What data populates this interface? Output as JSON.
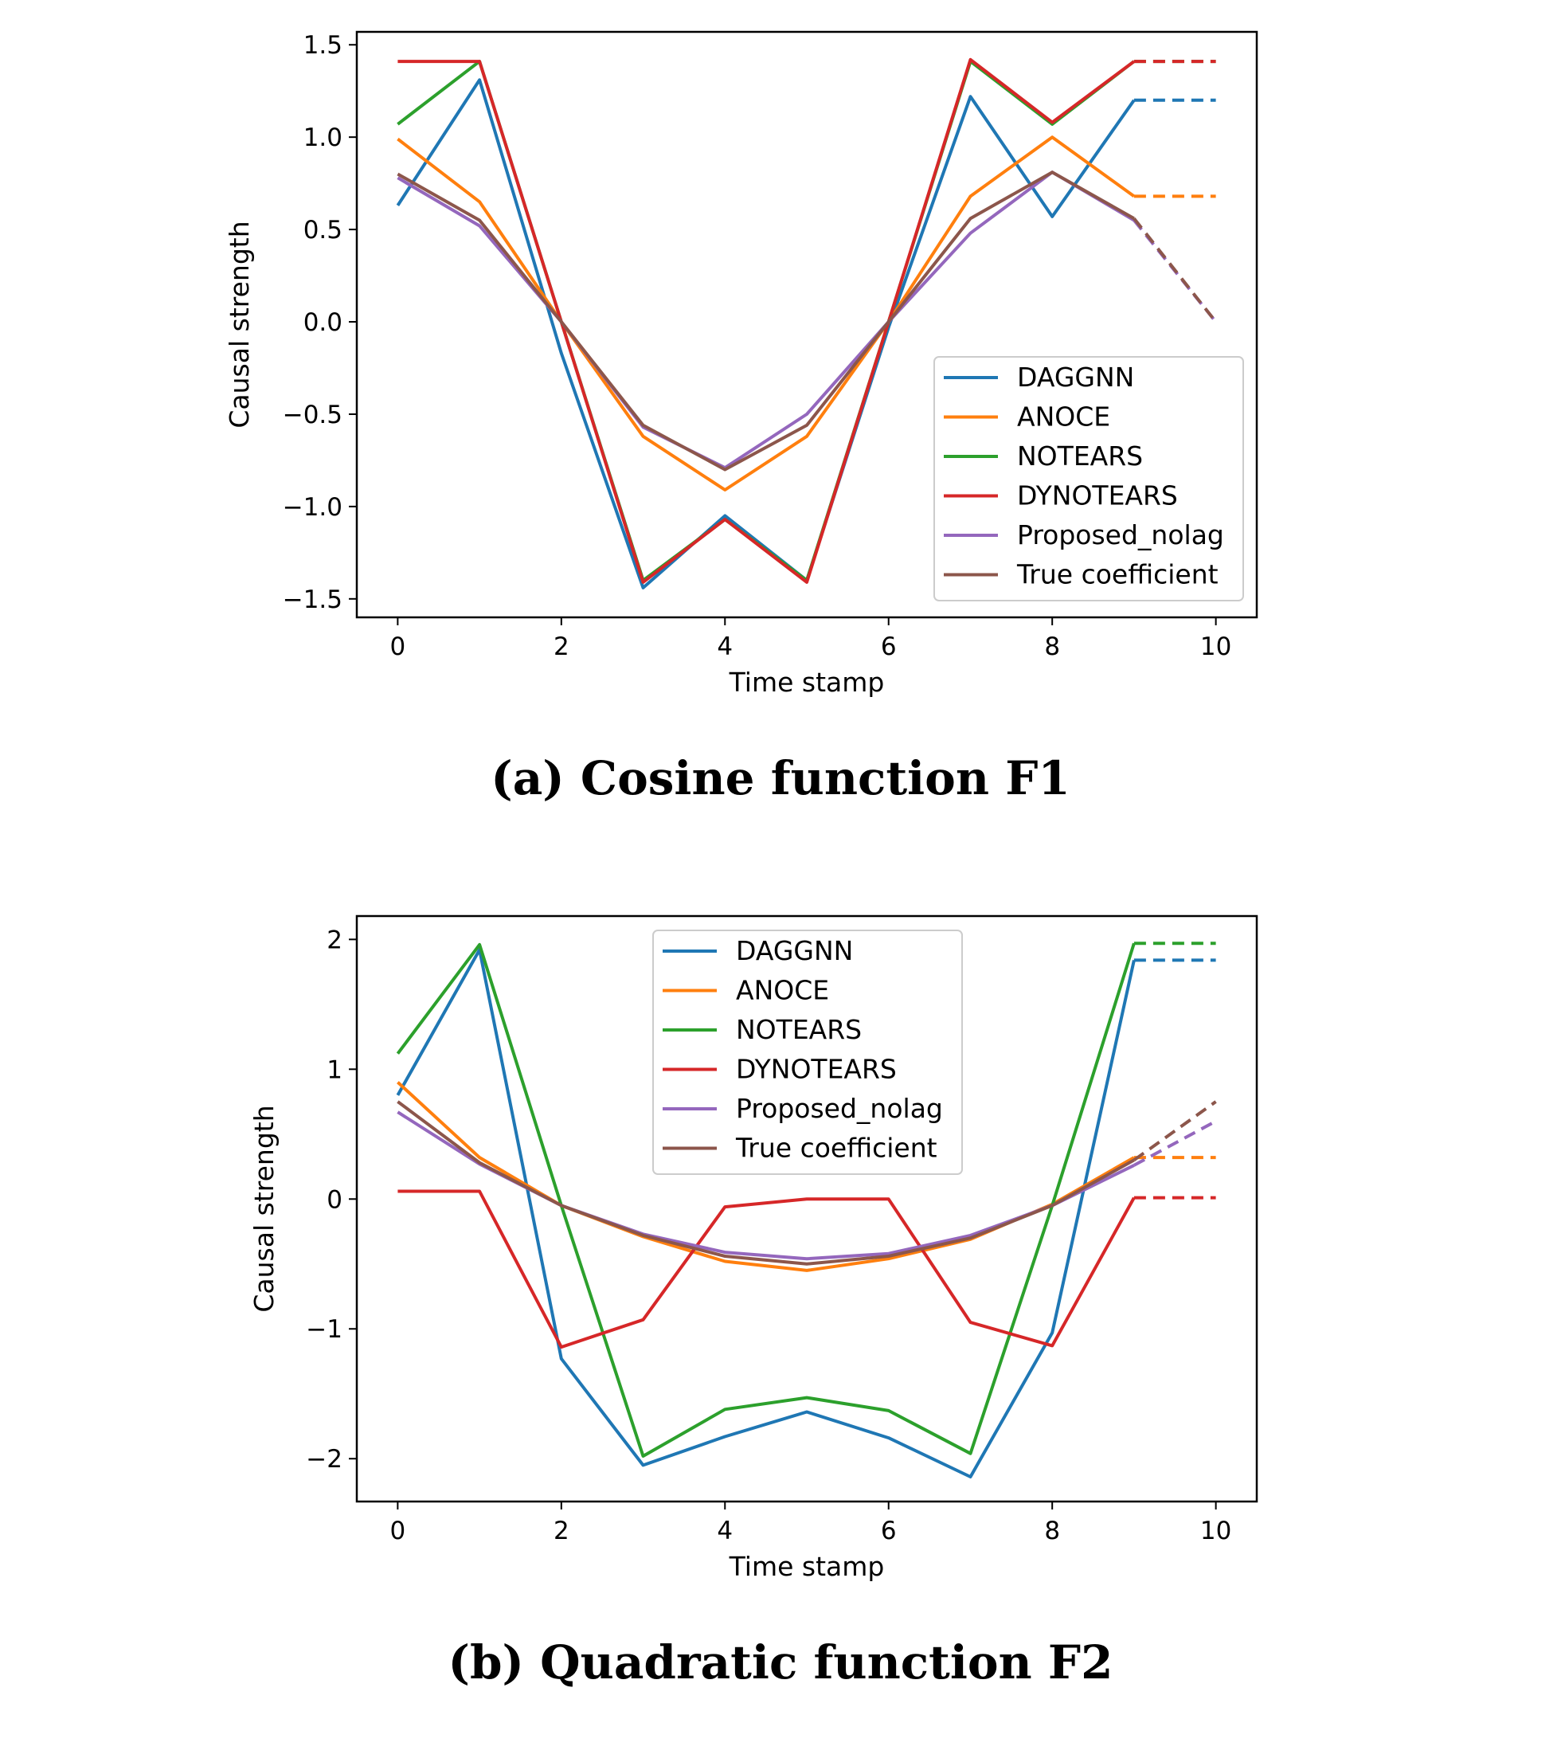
{
  "chart_data": [
    {
      "type": "line",
      "title": "",
      "caption": "(a) Cosine function F1",
      "xlabel": "Time stamp",
      "ylabel": "Causal strength",
      "xlim": [
        -0.5,
        10.5
      ],
      "ylim": [
        -1.6,
        1.57
      ],
      "xticks": [
        0,
        2,
        4,
        6,
        8,
        10
      ],
      "yticks": [
        -1.5,
        -1.0,
        -0.5,
        0.0,
        0.5,
        1.0,
        1.5
      ],
      "ytick_labels": [
        "−1.5",
        "−1.0",
        "−0.5",
        "0.0",
        "0.5",
        "1.0",
        "1.5"
      ],
      "legend_placement": "lower-right",
      "grid": false,
      "x": [
        0,
        1,
        2,
        3,
        4,
        5,
        6,
        7,
        8,
        9
      ],
      "forecast_x": [
        9,
        10
      ],
      "series": [
        {
          "name": "DAGGNN",
          "color": "#1f77b4",
          "values": [
            0.63,
            1.31,
            -0.17,
            -1.44,
            -1.05,
            -1.4,
            -0.03,
            1.22,
            0.57,
            1.2
          ],
          "forecast": [
            1.2,
            1.2
          ]
        },
        {
          "name": "ANOCE",
          "color": "#ff7f0e",
          "values": [
            0.99,
            0.65,
            0.0,
            -0.62,
            -0.91,
            -0.62,
            0.0,
            0.68,
            1.0,
            0.68
          ],
          "forecast": [
            0.68,
            0.68
          ]
        },
        {
          "name": "NOTEARS",
          "color": "#2ca02c",
          "values": [
            1.07,
            1.41,
            0.0,
            -1.4,
            -1.07,
            -1.4,
            0.0,
            1.41,
            1.07,
            1.41
          ],
          "forecast": [
            1.41,
            1.41
          ]
        },
        {
          "name": "DYNOTEARS",
          "color": "#d62728",
          "values": [
            1.41,
            1.41,
            0.0,
            -1.41,
            -1.07,
            -1.41,
            0.0,
            1.42,
            1.08,
            1.41
          ],
          "forecast": [
            1.41,
            1.41
          ]
        },
        {
          "name": "Proposed_nolag",
          "color": "#9467bd",
          "values": [
            0.78,
            0.52,
            0.0,
            -0.57,
            -0.79,
            -0.5,
            0.0,
            0.48,
            0.81,
            0.55
          ],
          "forecast": [
            0.55,
            0.0
          ]
        },
        {
          "name": "True coefficient",
          "color": "#8c564b",
          "values": [
            0.8,
            0.55,
            0.0,
            -0.56,
            -0.8,
            -0.56,
            0.0,
            0.56,
            0.81,
            0.56
          ],
          "forecast": [
            0.56,
            0.0
          ]
        }
      ]
    },
    {
      "type": "line",
      "title": "",
      "caption": "(b) Quadratic function F2",
      "xlabel": "Time stamp",
      "ylabel": "Causal strength",
      "xlim": [
        -0.5,
        10.5
      ],
      "ylim": [
        -2.33,
        2.18
      ],
      "xticks": [
        0,
        2,
        4,
        6,
        8,
        10
      ],
      "yticks": [
        -2,
        -1,
        0,
        1,
        2
      ],
      "ytick_labels": [
        "−2",
        "−1",
        "0",
        "1",
        "2"
      ],
      "legend_placement": "upper-center",
      "grid": false,
      "x": [
        0,
        1,
        2,
        3,
        4,
        5,
        6,
        7,
        8,
        9
      ],
      "forecast_x": [
        9,
        10
      ],
      "series": [
        {
          "name": "DAGGNN",
          "color": "#1f77b4",
          "values": [
            0.8,
            1.92,
            -1.23,
            -2.05,
            -1.83,
            -1.64,
            -1.84,
            -2.14,
            -1.03,
            1.84
          ],
          "forecast": [
            1.84,
            1.84
          ]
        },
        {
          "name": "ANOCE",
          "color": "#ff7f0e",
          "values": [
            0.9,
            0.32,
            -0.05,
            -0.29,
            -0.48,
            -0.55,
            -0.46,
            -0.31,
            -0.04,
            0.32
          ],
          "forecast": [
            0.32,
            0.32
          ]
        },
        {
          "name": "NOTEARS",
          "color": "#2ca02c",
          "values": [
            1.12,
            1.96,
            -0.05,
            -1.98,
            -1.62,
            -1.53,
            -1.63,
            -1.96,
            -0.05,
            1.97
          ],
          "forecast": [
            1.97,
            1.97
          ]
        },
        {
          "name": "DYNOTEARS",
          "color": "#d62728",
          "values": [
            0.06,
            0.06,
            -1.14,
            -0.93,
            -0.06,
            0.0,
            0.0,
            -0.95,
            -1.13,
            0.01
          ],
          "forecast": [
            0.01,
            0.01
          ]
        },
        {
          "name": "Proposed_nolag",
          "color": "#9467bd",
          "values": [
            0.67,
            0.27,
            -0.05,
            -0.27,
            -0.41,
            -0.46,
            -0.42,
            -0.28,
            -0.05,
            0.26
          ],
          "forecast": [
            0.26,
            0.6
          ]
        },
        {
          "name": "True coefficient",
          "color": "#8c564b",
          "values": [
            0.75,
            0.28,
            -0.05,
            -0.28,
            -0.44,
            -0.5,
            -0.44,
            -0.3,
            -0.05,
            0.3
          ],
          "forecast": [
            0.3,
            0.75
          ]
        }
      ]
    }
  ]
}
